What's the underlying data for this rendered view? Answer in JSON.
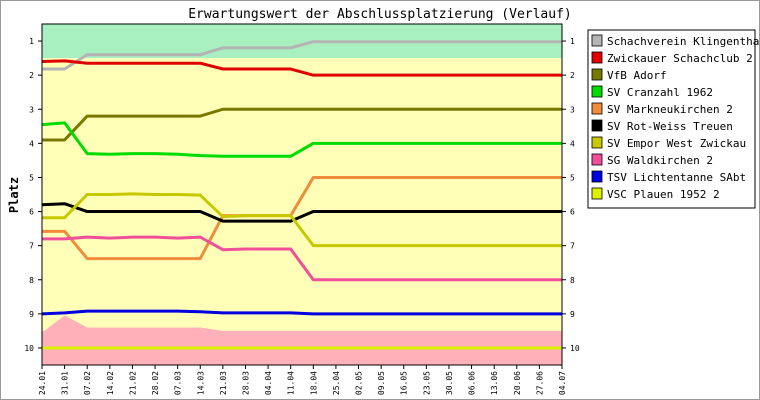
{
  "chart_data": {
    "type": "line",
    "title": "Erwartungswert der Abschlussplatzierung (Verlauf)",
    "ylabel": "Platz",
    "xlabel": "",
    "y_ticks": [
      1,
      2,
      3,
      4,
      5,
      6,
      7,
      8,
      9,
      10
    ],
    "ylim": [
      0.5,
      10.5
    ],
    "y_inverted": true,
    "grid": false,
    "legend_position": "right",
    "x": [
      "24.01",
      "31.01",
      "07.02",
      "14.02",
      "21.02",
      "28.02",
      "07.03",
      "14.03",
      "21.03",
      "28.03",
      "04.04",
      "11.04",
      "18.04",
      "25.04",
      "02.05",
      "09.05",
      "16.05",
      "23.05",
      "30.05",
      "06.06",
      "13.06",
      "20.06",
      "27.06",
      "04.07"
    ],
    "background_bands": [
      {
        "name": "top",
        "color": "#a8f0c0",
        "from": 0.5,
        "to": 1.5
      },
      {
        "name": "middle",
        "color": "#ffffb8",
        "from": 1.5,
        "to": 9.5
      },
      {
        "name": "bottom",
        "color": "#ffb0b8",
        "from": 9.5,
        "to": 10.5
      }
    ],
    "bottom_zone_profile": [
      9.55,
      9.05,
      9.4,
      9.4,
      9.4,
      9.4,
      9.4,
      9.4,
      9.5,
      9.5,
      9.5,
      9.5,
      9.5,
      9.5,
      9.5,
      9.5,
      9.5,
      9.5,
      9.5,
      9.5,
      9.5,
      9.5,
      9.5,
      9.5
    ],
    "series": [
      {
        "name": "Schachverein Klingenthal",
        "color": "#b4b4b4",
        "values": [
          1.82,
          1.82,
          1.4,
          1.4,
          1.4,
          1.4,
          1.4,
          1.4,
          1.2,
          1.2,
          1.2,
          1.2,
          1.02,
          1.02,
          1.02,
          1.02,
          1.02,
          1.02,
          1.02,
          1.02,
          1.02,
          1.02,
          1.02,
          1.02
        ]
      },
      {
        "name": "Zwickauer Schachclub 2",
        "color": "#e00000",
        "values": [
          1.6,
          1.58,
          1.65,
          1.65,
          1.65,
          1.65,
          1.65,
          1.65,
          1.82,
          1.82,
          1.82,
          1.82,
          2.0,
          2.0,
          2.0,
          2.0,
          2.0,
          2.0,
          2.0,
          2.0,
          2.0,
          2.0,
          2.0,
          2.0
        ]
      },
      {
        "name": "VfB Adorf",
        "color": "#787800",
        "values": [
          3.9,
          3.9,
          3.2,
          3.2,
          3.2,
          3.2,
          3.2,
          3.2,
          3.0,
          3.0,
          3.0,
          3.0,
          3.0,
          3.0,
          3.0,
          3.0,
          3.0,
          3.0,
          3.0,
          3.0,
          3.0,
          3.0,
          3.0,
          3.0
        ]
      },
      {
        "name": "SV Cranzahl 1962",
        "color": "#00dc00",
        "values": [
          3.45,
          3.4,
          4.3,
          4.32,
          4.3,
          4.3,
          4.32,
          4.36,
          4.38,
          4.38,
          4.38,
          4.38,
          4.0,
          4.0,
          4.0,
          4.0,
          4.0,
          4.0,
          4.0,
          4.0,
          4.0,
          4.0,
          4.0,
          4.0
        ]
      },
      {
        "name": "SV Markneukirchen 2",
        "color": "#f08c3c",
        "values": [
          6.58,
          6.58,
          7.38,
          7.38,
          7.38,
          7.38,
          7.38,
          7.38,
          6.12,
          6.12,
          6.12,
          6.12,
          5.0,
          5.0,
          5.0,
          5.0,
          5.0,
          5.0,
          5.0,
          5.0,
          5.0,
          5.0,
          5.0,
          5.0
        ]
      },
      {
        "name": "SV Rot-Weiss Treuen",
        "color": "#000000",
        "values": [
          5.8,
          5.77,
          6.0,
          6.0,
          6.0,
          6.0,
          6.0,
          6.0,
          6.28,
          6.28,
          6.28,
          6.28,
          6.0,
          6.0,
          6.0,
          6.0,
          6.0,
          6.0,
          6.0,
          6.0,
          6.0,
          6.0,
          6.0,
          6.0
        ]
      },
      {
        "name": "SV Empor West Zwickau",
        "color": "#c8c800",
        "values": [
          6.18,
          6.18,
          5.5,
          5.5,
          5.48,
          5.5,
          5.5,
          5.52,
          6.15,
          6.12,
          6.12,
          6.12,
          7.0,
          7.0,
          7.0,
          7.0,
          7.0,
          7.0,
          7.0,
          7.0,
          7.0,
          7.0,
          7.0,
          7.0
        ]
      },
      {
        "name": "SG Waldkirchen 2",
        "color": "#f0509a",
        "values": [
          6.8,
          6.8,
          6.75,
          6.78,
          6.75,
          6.75,
          6.78,
          6.75,
          7.12,
          7.1,
          7.1,
          7.1,
          8.0,
          8.0,
          8.0,
          8.0,
          8.0,
          8.0,
          8.0,
          8.0,
          8.0,
          8.0,
          8.0,
          8.0
        ]
      },
      {
        "name": "TSV Lichtentanne SAbt",
        "color": "#0000e0",
        "values": [
          9.0,
          8.97,
          8.92,
          8.92,
          8.92,
          8.92,
          8.92,
          8.94,
          8.97,
          8.97,
          8.97,
          8.97,
          9.0,
          9.0,
          9.0,
          9.0,
          9.0,
          9.0,
          9.0,
          9.0,
          9.0,
          9.0,
          9.0,
          9.0
        ]
      },
      {
        "name": "VSC Plauen 1952 2",
        "color": "#dcf000",
        "values": [
          10.0,
          10.0,
          10.0,
          10.0,
          10.0,
          10.0,
          10.0,
          10.0,
          10.0,
          10.0,
          10.0,
          10.0,
          10.0,
          10.0,
          10.0,
          10.0,
          10.0,
          10.0,
          10.0,
          10.0,
          10.0,
          10.0,
          10.0,
          10.0
        ]
      }
    ]
  }
}
